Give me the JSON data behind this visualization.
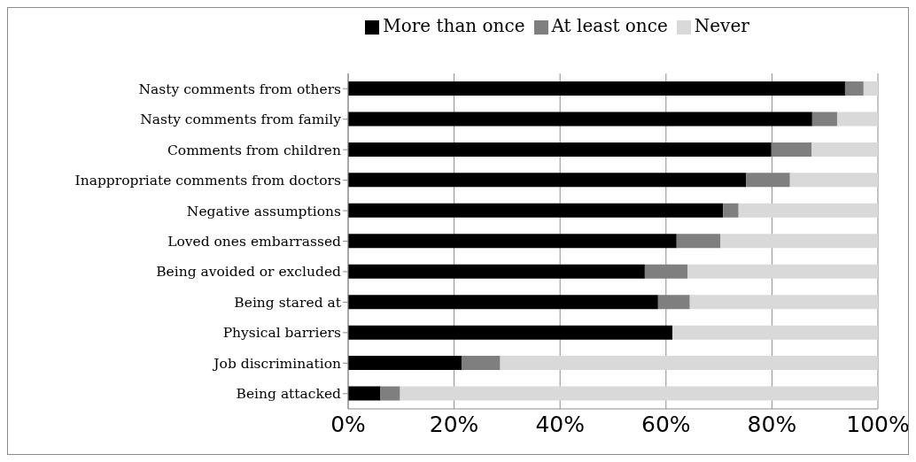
{
  "chart_data": {
    "type": "bar",
    "orientation": "horizontal",
    "stacked": true,
    "categories": [
      "Nasty comments from others",
      "Nasty comments from family",
      "Comments from children",
      "Inappropriate comments from doctors",
      "Negative assumptions",
      "Loved ones embarrassed",
      "Being avoided or excluded",
      "Being stared at",
      "Physical barriers",
      "Job discrimination",
      "Being attacked"
    ],
    "series": [
      {
        "name": "More than once",
        "color": "#000000",
        "values": [
          93.8,
          87.6,
          79.9,
          75.1,
          70.8,
          62.0,
          56.0,
          58.5,
          61.2,
          21.4,
          6.1
        ]
      },
      {
        "name": "At least once",
        "color": "#7f7f7f",
        "values": [
          3.5,
          4.7,
          7.6,
          8.3,
          2.9,
          8.3,
          8.1,
          6.0,
          0,
          7.3,
          3.7
        ]
      },
      {
        "name": "Never",
        "color": "#d9d9d9",
        "values": [
          2.7,
          7.7,
          12.5,
          16.6,
          26.3,
          29.7,
          35.9,
          35.5,
          38.8,
          71.3,
          90.2
        ]
      }
    ],
    "xlim": [
      0,
      100
    ],
    "xticks": [
      {
        "value": 0,
        "label": "0%"
      },
      {
        "value": 20,
        "label": "20%"
      },
      {
        "value": 40,
        "label": "40%"
      },
      {
        "value": 60,
        "label": "60%"
      },
      {
        "value": 80,
        "label": "80%"
      },
      {
        "value": 100,
        "label": "100%"
      }
    ],
    "grid": "x",
    "legend": "top"
  }
}
